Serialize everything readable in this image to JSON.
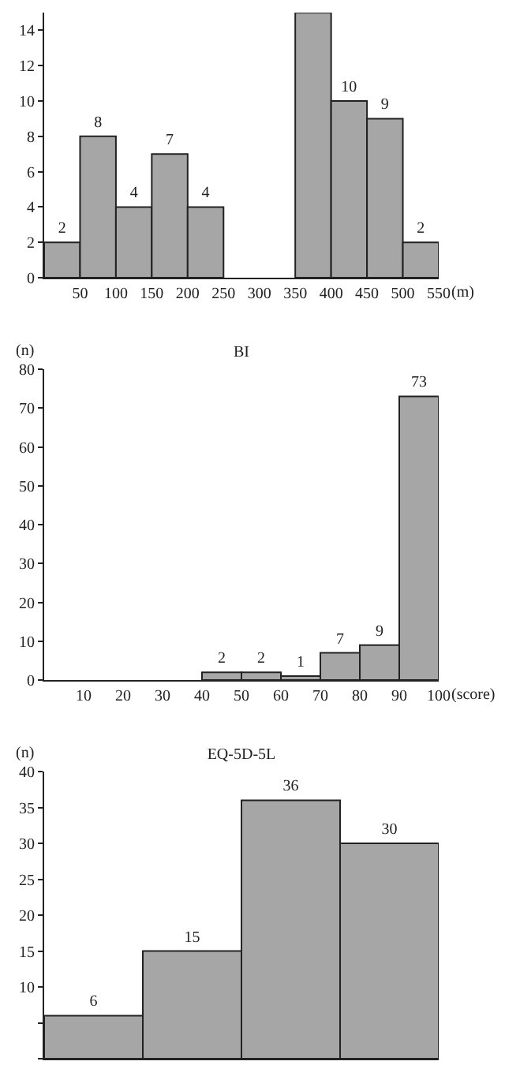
{
  "chart_data": [
    {
      "type": "histogram",
      "xlabel": "(m)",
      "bins": [
        0,
        50,
        100,
        150,
        200,
        250,
        300,
        350,
        400,
        450,
        500,
        550
      ],
      "values": [
        2,
        8,
        4,
        7,
        4,
        null,
        null,
        15,
        10,
        9,
        2
      ],
      "value_labels": [
        "2",
        "8",
        "4",
        "7",
        "4",
        null,
        null,
        null,
        "10",
        "9",
        "2"
      ],
      "color": "#a6a6a6",
      "xlim": [
        0,
        550
      ],
      "xticks": [
        50,
        100,
        150,
        200,
        250,
        300,
        350,
        400,
        450,
        500,
        550
      ],
      "ylim": [
        0,
        15
      ],
      "yticks": [
        0,
        2,
        4,
        6,
        8,
        10,
        12,
        14
      ],
      "grid": false
    },
    {
      "type": "histogram",
      "title": "BI",
      "ylabel": "(n)",
      "xlabel": "(score)",
      "bins": [
        0,
        10,
        20,
        30,
        40,
        50,
        60,
        70,
        80,
        90,
        100
      ],
      "values": [
        0,
        0,
        0,
        0,
        2,
        2,
        1,
        7,
        9,
        73
      ],
      "value_labels": [
        null,
        null,
        null,
        null,
        "2",
        "2",
        "1",
        "7",
        "9",
        "73"
      ],
      "color": "#a6a6a6",
      "xlim": [
        0,
        100
      ],
      "xticks": [
        10,
        20,
        30,
        40,
        50,
        60,
        70,
        80,
        90,
        100
      ],
      "ylim": [
        0,
        80
      ],
      "yticks": [
        0,
        10,
        20,
        30,
        40,
        50,
        60,
        70,
        80
      ],
      "grid": false
    },
    {
      "type": "bar",
      "title": "EQ-5D-5L",
      "ylabel": "(n)",
      "categories": [
        null,
        null,
        null,
        null
      ],
      "values": [
        6,
        15,
        36,
        30
      ],
      "data_labels": true,
      "color": "#a6a6a6",
      "tick_labels": "y",
      "ylim": [
        0,
        40
      ],
      "yticks": [
        {
          "value": 0,
          "label": null
        },
        {
          "value": 5,
          "label": null
        },
        10,
        15,
        20,
        25,
        30,
        35,
        40
      ],
      "grid": false
    }
  ]
}
